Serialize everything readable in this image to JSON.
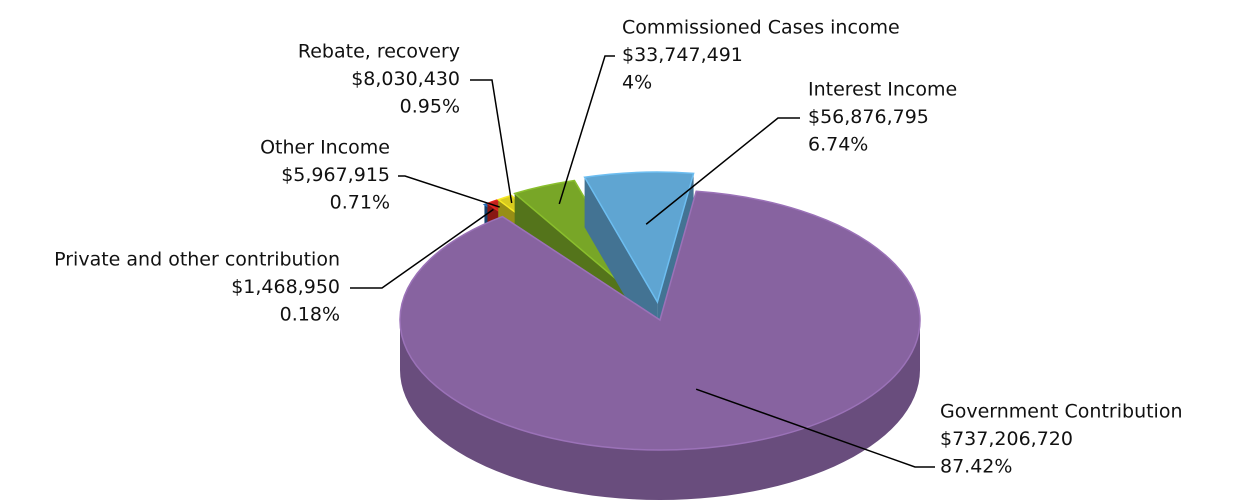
{
  "chart_data": {
    "type": "pie",
    "categories": [
      "Government Contribution",
      "Private and other contribution",
      "Other Income",
      "Rebate, recovery",
      "Commissioned Cases income",
      "Interest Income"
    ],
    "values": [
      87.42,
      0.18,
      0.71,
      0.95,
      4,
      6.74
    ],
    "value_labels": [
      "87.42%",
      "0.18%",
      "0.71%",
      "0.95%",
      "4%",
      "6.74%"
    ],
    "amounts": [
      737206720,
      1468950,
      5967915,
      8030430,
      33747491,
      56876795
    ],
    "amount_labels": [
      "$737,206,720",
      "$1,468,950",
      "$5,967,915",
      "$8,030,430",
      "$33,747,491",
      "$56,876,795"
    ],
    "colors": [
      "#8763a0",
      "#1f5f9f",
      "#c4221d",
      "#d8cb1f",
      "#78a627",
      "#5fa5d2"
    ]
  }
}
